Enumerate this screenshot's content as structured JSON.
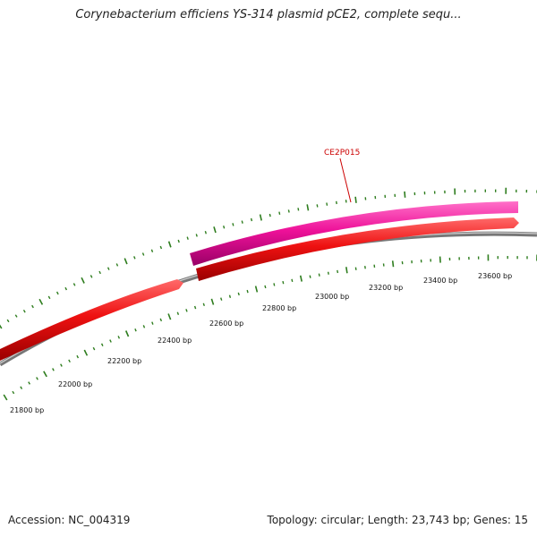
{
  "header": {
    "title": "Corynebacterium efficiens YS-314 plasmid pCE2, complete sequ..."
  },
  "footer": {
    "accession": "Accession: NC_004319",
    "info": "Topology: circular; Length: 23,743 bp; Genes: 15"
  },
  "map": {
    "ticks": [
      "21800 bp",
      "22000 bp",
      "22200 bp",
      "22400 bp",
      "22600 bp",
      "22800 bp",
      "23000 bp",
      "23200 bp",
      "23400 bp",
      "23600 bp"
    ],
    "gene_label": "CE2P015",
    "colors": {
      "forward_gene": "#ee1111",
      "highlight_gene": "#ee1199",
      "backbone": "#888888",
      "tick": "#2e7d1e",
      "gene_label": "#cc0000"
    }
  }
}
